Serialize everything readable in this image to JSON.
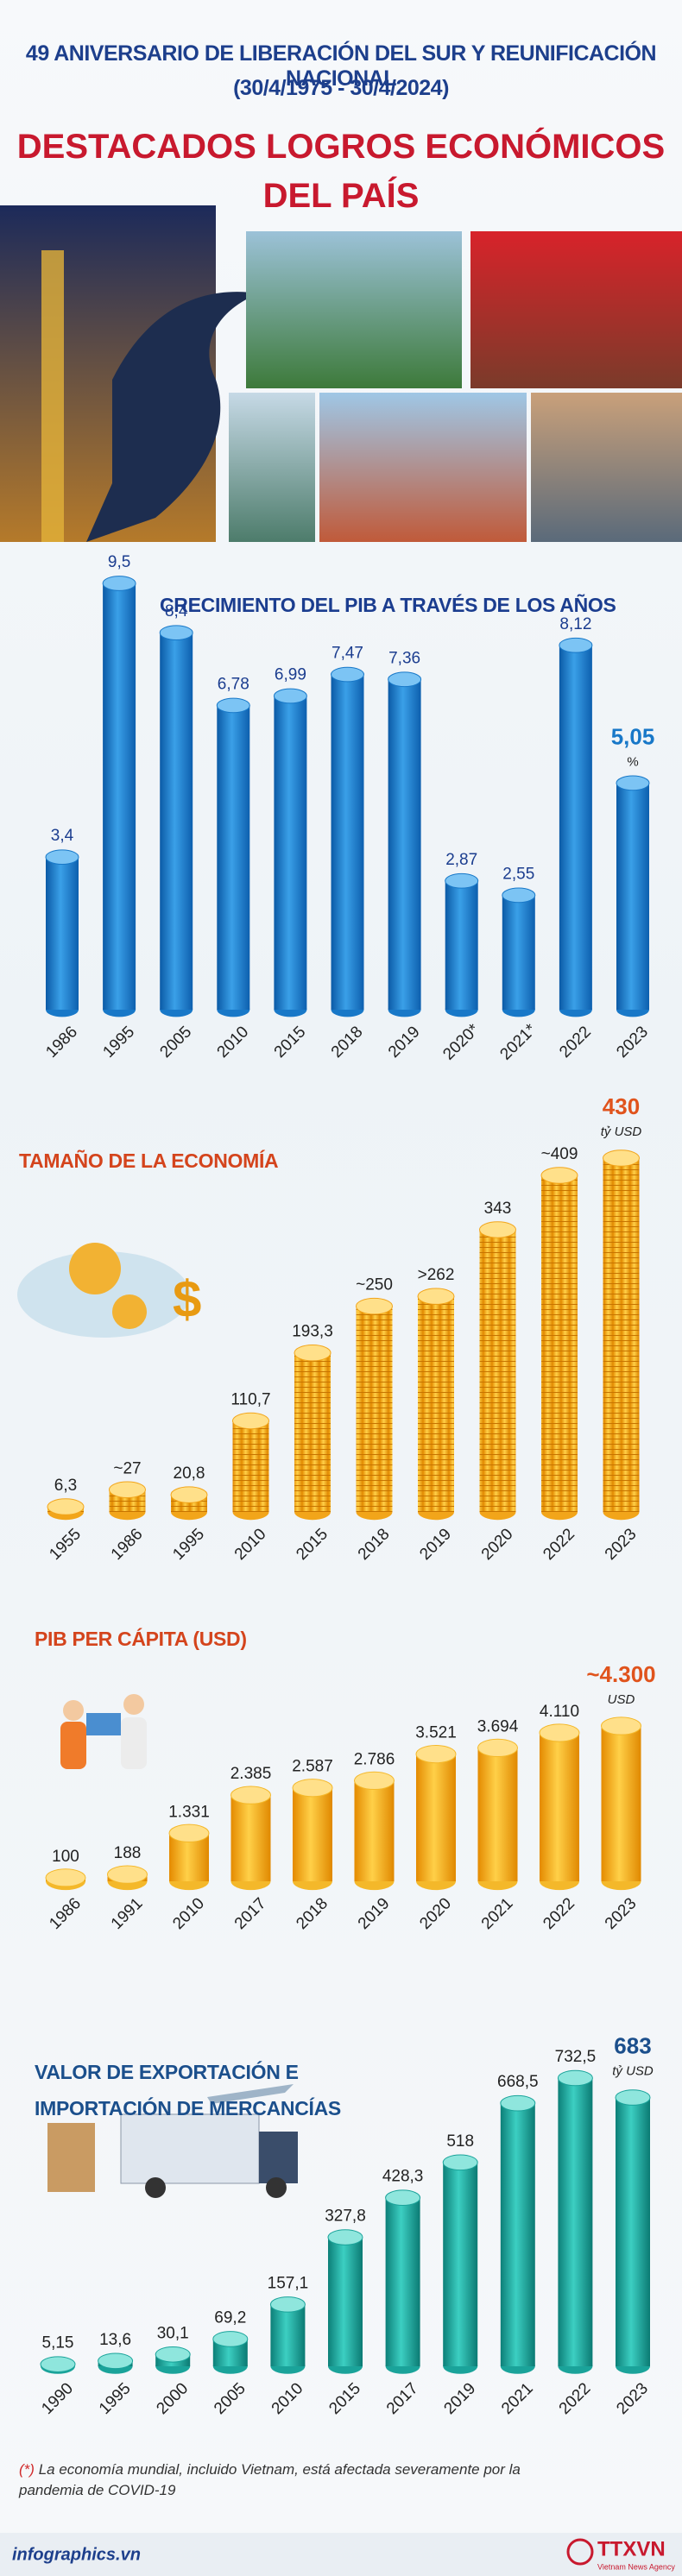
{
  "header": {
    "subtitle_lines": [
      "49  ANIVERSARIO DE LIBERACIÓN DEL SUR Y REUNIFICACIÓN NACIONAL",
      "(30/4/1975 - 30/4/2024)"
    ],
    "title_lines": [
      "DESTACADOS LOGROS ECONÓMICOS",
      "DEL PAÍS"
    ]
  },
  "chart_data": [
    {
      "type": "bar",
      "title": "CRECIMIENTO DEL PIB A TRAVÉS DE LOS AÑOS",
      "color": "#1878c8",
      "unit": "%",
      "categories": [
        "1986",
        "1995",
        "2005",
        "2010",
        "2015",
        "2018",
        "2019",
        "2020*",
        "2021*",
        "2022",
        "2023"
      ],
      "values": [
        3.4,
        9.5,
        8.4,
        6.78,
        6.99,
        7.47,
        7.36,
        2.87,
        2.55,
        8.12,
        5.05
      ],
      "value_labels": [
        "3,4",
        "9,5",
        "8,4",
        "6,78",
        "6,99",
        "7,47",
        "7,36",
        "2,87",
        "2,55",
        "8,12",
        "5,05"
      ]
    },
    {
      "type": "bar",
      "title": "TAMAÑO DE LA ECONOMÍA",
      "color": "#f2a51a",
      "unit": "tỷ USD",
      "categories": [
        "1955",
        "1986",
        "1995",
        "2010",
        "2015",
        "2018",
        "2019",
        "2020",
        "2022",
        "2023"
      ],
      "values": [
        6.3,
        27,
        20.8,
        110.7,
        193.3,
        250,
        262,
        343,
        409,
        430
      ],
      "value_labels": [
        "6,3",
        "~27",
        "20,8",
        "110,7",
        "193,3",
        "~250",
        ">262",
        "343",
        "~409",
        "430"
      ]
    },
    {
      "type": "bar",
      "title": "PIB PER CÁPITA (USD)",
      "color": "#f4b82a",
      "unit": "USD",
      "categories": [
        "1986",
        "1991",
        "2010",
        "2017",
        "2018",
        "2019",
        "2020",
        "2021",
        "2022",
        "2023"
      ],
      "values": [
        100,
        188,
        1331,
        2385,
        2587,
        2786,
        3521,
        3694,
        4110,
        4300
      ],
      "value_labels": [
        "100",
        "188",
        "1.331",
        "2.385",
        "2.587",
        "2.786",
        "3.521",
        "3.694",
        "4.110",
        "~4.300"
      ]
    },
    {
      "type": "bar",
      "title": "VALOR DE EXPORTACIÓN E IMPORTACIÓN DE MERCANCÍAS",
      "color": "#1aa39a",
      "unit": "tỷ USD",
      "categories": [
        "1990",
        "1995",
        "2000",
        "2005",
        "2010",
        "2015",
        "2017",
        "2019",
        "2021",
        "2022",
        "2023"
      ],
      "values": [
        5.15,
        13.6,
        30.1,
        69.2,
        157.1,
        327.8,
        428.3,
        518,
        668.5,
        732.5,
        683
      ],
      "value_labels": [
        "5,15",
        "13,6",
        "30,1",
        "69,2",
        "157,1",
        "327,8",
        "428,3",
        "518",
        "668,5",
        "732,5",
        "683"
      ]
    }
  ],
  "footnote": {
    "marker": "(*)",
    "text": "La economía mundial, incluido Vietnam, está afectada severamente por la pandemia de COVID-19"
  },
  "footer": {
    "site": "infographics.vn",
    "agency": "TTXVN",
    "agency_sub": "Vietnam News Agency"
  }
}
